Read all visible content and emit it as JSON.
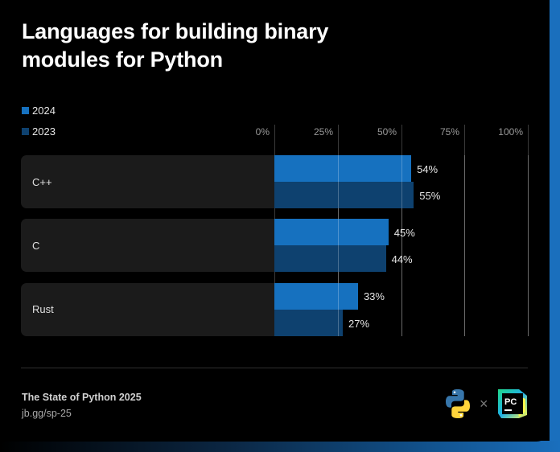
{
  "colors": {
    "y2024": "#1671bf",
    "y2023": "#0e416f",
    "accent": "#1a6fbd"
  },
  "chart_data": {
    "type": "bar",
    "orientation": "horizontal",
    "title": "Languages for building binary modules for Python",
    "categories": [
      "C++",
      "C",
      "Rust"
    ],
    "series": [
      {
        "name": "2024",
        "values": [
          54,
          45,
          33
        ],
        "labels": [
          "54%",
          "45%",
          "33%"
        ]
      },
      {
        "name": "2023",
        "values": [
          55,
          44,
          27
        ],
        "labels": [
          "55%",
          "44%",
          "27%"
        ]
      }
    ],
    "xlim": [
      0,
      100
    ],
    "xticks": [
      "0%",
      "25%",
      "50%",
      "75%",
      "100%"
    ],
    "grid": true,
    "legend": "top-left"
  },
  "footer": {
    "title": "The State of Python 2025",
    "link": "jb.gg/sp-25"
  },
  "logos": {
    "python": "python-logo",
    "separator": "×",
    "pycharm": "pycharm-logo",
    "pycharm_text": "PC"
  }
}
